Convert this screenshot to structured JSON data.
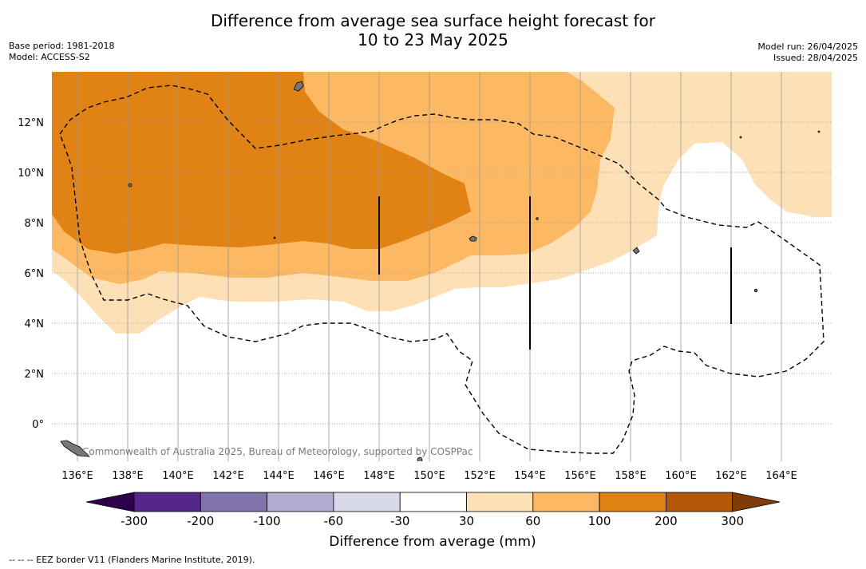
{
  "title_line1": "Difference from average sea surface height forecast for",
  "title_line2": "10 to 23 May 2025",
  "base_period": "Base period: 1981-2018",
  "model": "Model: ACCESS-S2",
  "model_run": "Model run: 26/04/2025",
  "issued": "Issued: 28/04/2025",
  "copyright": "Commonwealth of Australia 2025, Bureau of Meteorology, supported by COSPPac",
  "footer": "--  --  -- EEZ border V11 (Flanders Marine Institute, 2019).",
  "map": {
    "lon_labels": [
      "136°E",
      "138°E",
      "140°E",
      "142°E",
      "144°E",
      "146°E",
      "148°E",
      "150°E",
      "152°E",
      "154°E",
      "156°E",
      "158°E",
      "160°E",
      "162°E",
      "164°E"
    ],
    "lat_labels": [
      "12°N",
      "10°N",
      "8°N",
      "6°N",
      "4°N",
      "2°N",
      "0°"
    ]
  },
  "colorbar": {
    "title": "Difference from average (mm)",
    "labels": [
      "-300",
      "-200",
      "-100",
      "-60",
      "-30",
      "30",
      "60",
      "100",
      "200",
      "300"
    ],
    "colors": [
      "#2d004b",
      "#542788",
      "#8073ac",
      "#b2abd2",
      "#d8daeb",
      "#ffffff",
      "#fee0b6",
      "#fdb863",
      "#e08214",
      "#b35806",
      "#7f3b08"
    ]
  }
}
